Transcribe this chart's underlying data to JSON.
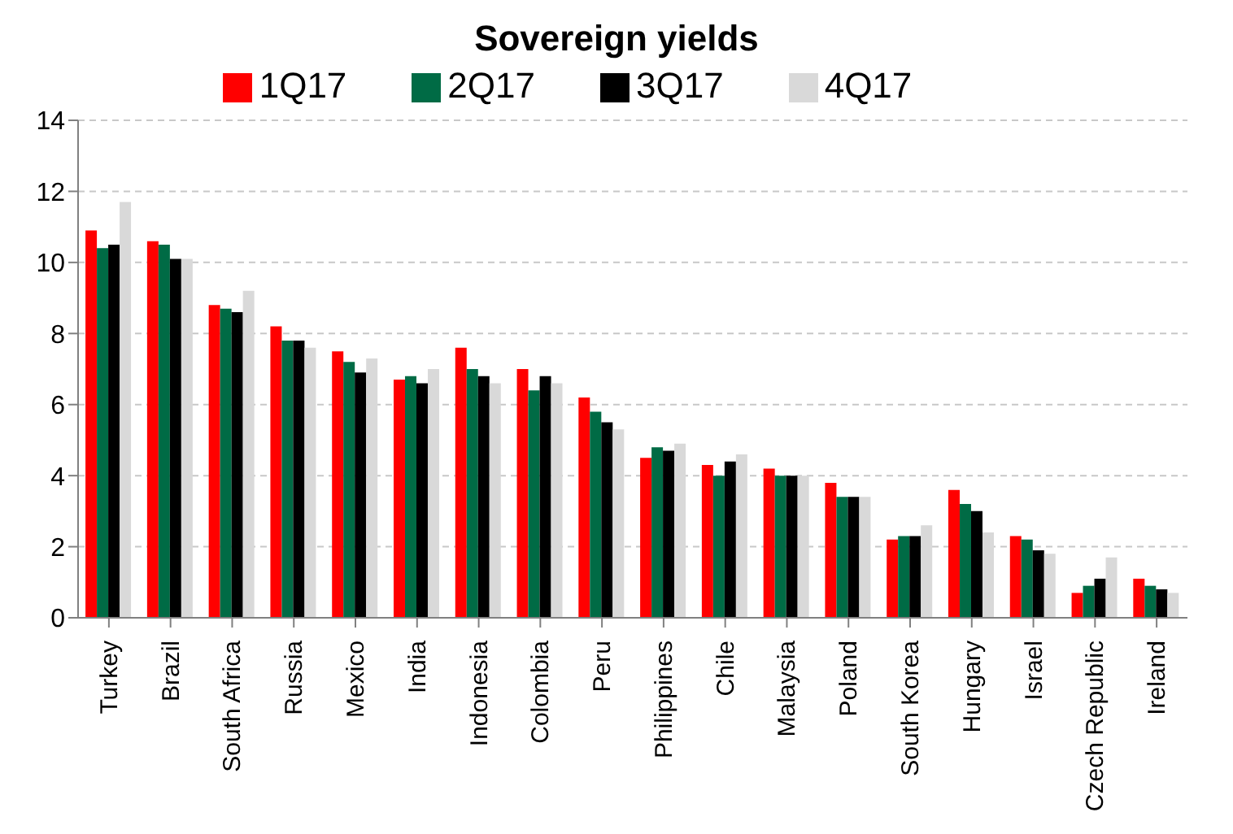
{
  "chart_data": {
    "type": "bar",
    "title": "Sovereign yields",
    "categories": [
      "Turkey",
      "Brazil",
      "South Africa",
      "Russia",
      "Mexico",
      "India",
      "Indonesia",
      "Colombia",
      "Peru",
      "Philippines",
      "Chile",
      "Malaysia",
      "Poland",
      "South Korea",
      "Hungary",
      "Israel",
      "Czech Republic",
      "Ireland"
    ],
    "series": [
      {
        "name": "1Q17",
        "color": "#ff0000",
        "values": [
          10.9,
          10.6,
          8.8,
          8.2,
          7.5,
          6.7,
          7.6,
          7.0,
          6.2,
          4.5,
          4.3,
          4.2,
          3.8,
          2.2,
          3.6,
          2.3,
          0.7,
          1.1
        ]
      },
      {
        "name": "2Q17",
        "color": "#006b45",
        "values": [
          10.4,
          10.5,
          8.7,
          7.8,
          7.2,
          6.8,
          7.0,
          6.4,
          5.8,
          4.8,
          4.0,
          4.0,
          3.4,
          2.3,
          3.2,
          2.2,
          0.9,
          0.9
        ]
      },
      {
        "name": "3Q17",
        "color": "#000000",
        "values": [
          10.5,
          10.1,
          8.6,
          7.8,
          6.9,
          6.6,
          6.8,
          6.8,
          5.5,
          4.7,
          4.4,
          4.0,
          3.4,
          2.3,
          3.0,
          1.9,
          1.1,
          0.8
        ]
      },
      {
        "name": "4Q17",
        "color": "#d9d9d9",
        "values": [
          11.7,
          10.1,
          9.2,
          7.6,
          7.3,
          7.0,
          6.6,
          6.6,
          5.3,
          4.9,
          4.6,
          4.0,
          3.4,
          2.6,
          2.4,
          1.8,
          1.7,
          0.7
        ]
      }
    ],
    "ylim": [
      0,
      14
    ],
    "yticks": [
      0,
      2,
      4,
      6,
      8,
      10,
      12,
      14
    ],
    "grid": "y",
    "legend": "top"
  }
}
